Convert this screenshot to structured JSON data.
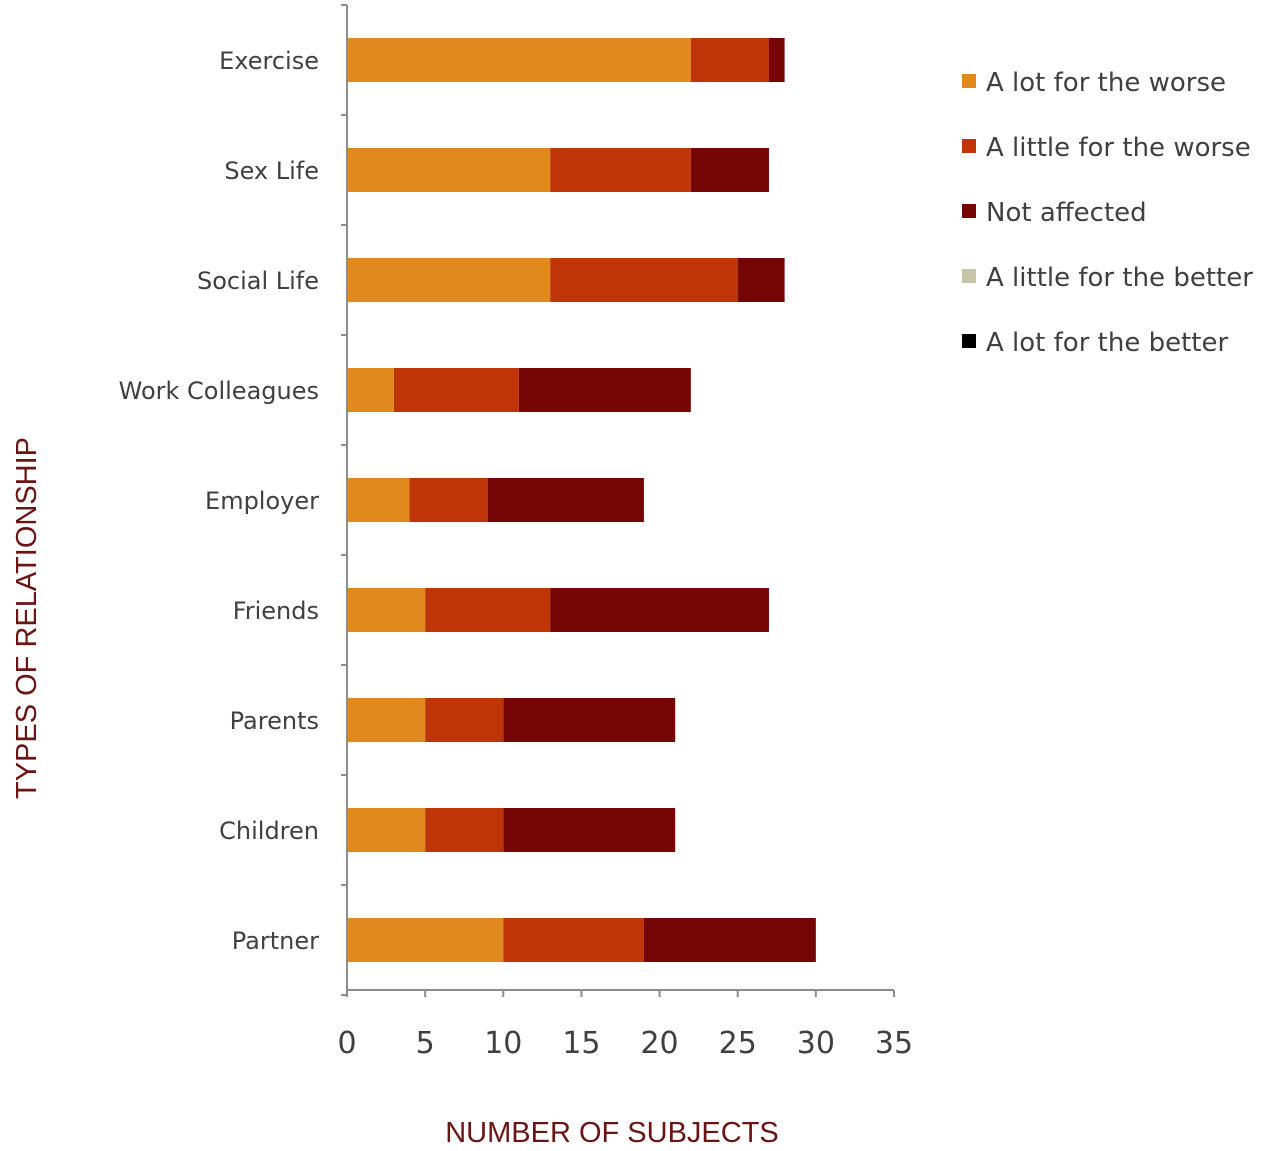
{
  "chart_data": {
    "type": "bar",
    "orientation": "horizontal",
    "stacked": true,
    "categories": [
      "Exercise",
      "Sex Life",
      "Social Life",
      "Work Colleagues",
      "Employer",
      "Friends",
      "Parents",
      "Children",
      "Partner"
    ],
    "series": [
      {
        "name": "A lot for the worse",
        "color": "#e08a1e",
        "values": [
          22,
          13,
          13,
          3,
          4,
          5,
          5,
          5,
          10
        ]
      },
      {
        "name": "A little for the worse",
        "color": "#c03508",
        "values": [
          5,
          9,
          12,
          8,
          5,
          8,
          5,
          5,
          9
        ]
      },
      {
        "name": "Not affected",
        "color": "#760606",
        "values": [
          1,
          5,
          3,
          11,
          10,
          14,
          11,
          11,
          11
        ]
      },
      {
        "name": "A little for the better",
        "color": "#c8c4a8",
        "values": [
          0,
          0,
          0,
          0,
          0,
          0,
          0,
          0,
          0
        ]
      },
      {
        "name": "A lot for the better",
        "color": "#000000",
        "values": [
          0,
          0,
          0,
          0,
          0,
          0,
          0,
          0,
          0
        ]
      }
    ],
    "xlabel": "NUMBER OF SUBJECTS",
    "ylabel": "TYPES OF RELATIONSHIP",
    "xlim": [
      0,
      35
    ],
    "xticks": [
      0,
      5,
      10,
      15,
      20,
      25,
      30,
      35
    ],
    "grid": false,
    "legend_position": "top-right"
  }
}
